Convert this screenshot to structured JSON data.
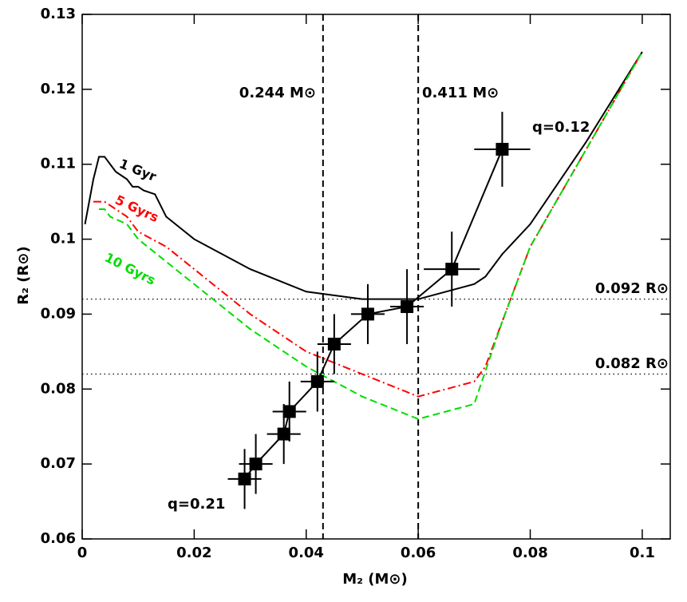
{
  "chart_data": {
    "type": "line",
    "xlabel": "M₂ (M⊙)",
    "ylabel": "R₂ (R⊙)",
    "xlim": [
      0,
      0.105
    ],
    "ylim": [
      0.06,
      0.13
    ],
    "xticks": [
      0,
      0.02,
      0.04,
      0.06,
      0.08,
      0.1
    ],
    "yticks": [
      0.06,
      0.07,
      0.08,
      0.09,
      0.1,
      0.11,
      0.12,
      0.13
    ],
    "series": [
      {
        "name": "1 Gyr",
        "color": "#000000",
        "style": "solid",
        "x": [
          0.0005,
          0.002,
          0.003,
          0.004,
          0.005,
          0.006,
          0.008,
          0.009,
          0.01,
          0.011,
          0.013,
          0.015,
          0.02,
          0.03,
          0.04,
          0.05,
          0.06,
          0.07,
          0.072,
          0.075,
          0.08,
          0.09,
          0.1
        ],
        "values": [
          0.102,
          0.108,
          0.111,
          0.111,
          0.11,
          0.109,
          0.108,
          0.107,
          0.107,
          0.1065,
          0.106,
          0.103,
          0.1,
          0.096,
          0.093,
          0.092,
          0.092,
          0.094,
          0.095,
          0.098,
          0.102,
          0.113,
          0.125
        ]
      },
      {
        "name": "5 Gyrs",
        "color": "#ff0000",
        "style": "dashdot",
        "x": [
          0.002,
          0.004,
          0.005,
          0.006,
          0.008,
          0.01,
          0.015,
          0.02,
          0.03,
          0.04,
          0.05,
          0.06,
          0.07,
          0.072,
          0.075,
          0.08,
          0.09,
          0.1
        ],
        "values": [
          0.105,
          0.105,
          0.1045,
          0.104,
          0.103,
          0.101,
          0.099,
          0.096,
          0.09,
          0.085,
          0.082,
          0.079,
          0.081,
          0.083,
          0.089,
          0.099,
          0.112,
          0.125
        ]
      },
      {
        "name": "10 Gyrs",
        "color": "#00dd00",
        "style": "dashed",
        "x": [
          0.003,
          0.004,
          0.005,
          0.008,
          0.01,
          0.015,
          0.02,
          0.03,
          0.04,
          0.05,
          0.06,
          0.07,
          0.075,
          0.08,
          0.09,
          0.1
        ],
        "values": [
          0.104,
          0.104,
          0.103,
          0.102,
          0.1,
          0.097,
          0.094,
          0.088,
          0.083,
          0.079,
          0.076,
          0.078,
          0.089,
          0.099,
          0.112,
          0.125
        ]
      }
    ],
    "points": {
      "color": "#000000",
      "x": [
        0.029,
        0.031,
        0.036,
        0.037,
        0.042,
        0.045,
        0.051,
        0.058,
        0.066,
        0.075
      ],
      "values": [
        0.068,
        0.07,
        0.074,
        0.077,
        0.081,
        0.086,
        0.09,
        0.091,
        0.096,
        0.112
      ],
      "xerr": [
        0.003,
        0.003,
        0.003,
        0.003,
        0.003,
        0.003,
        0.003,
        0.003,
        0.005,
        0.005
      ],
      "yerr": [
        0.004,
        0.004,
        0.004,
        0.004,
        0.004,
        0.004,
        0.004,
        0.005,
        0.005,
        0.005
      ]
    },
    "vlines": [
      0.043,
      0.06
    ],
    "hlines": [
      0.092,
      0.082
    ],
    "annotations": [
      "0.244 M⊙",
      "0.411 M⊙",
      "0.092 R⊙",
      "0.082 R⊙",
      "q=0.12",
      "q=0.21"
    ]
  }
}
